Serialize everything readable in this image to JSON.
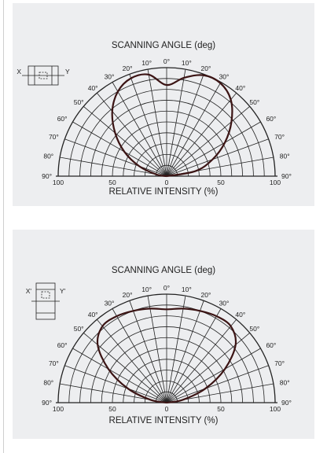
{
  "chart_data": [
    {
      "type": "polar",
      "title": "SCANNING ANGLE (deg)",
      "xlabel": "RELATIVE INTENSITY  (%)",
      "angle_ticks": [
        "10°",
        "0°",
        "10°",
        "20°",
        "30°",
        "40°",
        "50°",
        "60°",
        "70°",
        "80°",
        "90°"
      ],
      "angle_ticks_left": [
        "90°",
        "80°",
        "70°",
        "60°",
        "50°",
        "40°",
        "30°",
        "20°",
        "10°"
      ],
      "angle_ticks_right": [
        "0°",
        "10°",
        "20°",
        "30°",
        "40°",
        "50°",
        "60°",
        "70°",
        "80°",
        "90°"
      ],
      "intensity_ticks": [
        "100",
        "50",
        "0",
        "50",
        "100"
      ],
      "rlim": [
        0,
        100
      ],
      "inset": {
        "left_label": "X",
        "right_label": "Y"
      },
      "series": [
        {
          "angle_deg": [
            -90,
            -80,
            -70,
            -60,
            -50,
            -40,
            -30,
            -20,
            -10,
            0,
            10,
            20,
            30,
            40,
            50,
            60,
            70,
            80,
            90
          ],
          "relative_intensity": [
            0,
            10,
            27,
            45,
            62,
            78,
            90,
            96,
            95,
            84,
            92,
            99,
            99,
            92,
            78,
            62,
            45,
            27,
            0
          ]
        }
      ]
    },
    {
      "type": "polar",
      "title": "SCANNING ANGLE (deg)",
      "xlabel": "RELATIVE INTENSITY  (%)",
      "angle_ticks_left": [
        "90°",
        "80°",
        "70°",
        "60°",
        "50°",
        "40°",
        "30°",
        "20°",
        "10°"
      ],
      "angle_ticks_right": [
        "0°",
        "10°",
        "20°",
        "30°",
        "40°",
        "50°",
        "60°",
        "70°",
        "80°",
        "90°"
      ],
      "intensity_ticks": [
        "100",
        "50",
        "0",
        "50",
        "100"
      ],
      "rlim": [
        0,
        100
      ],
      "inset": {
        "left_label": "X'",
        "right_label": "Y'"
      },
      "series": [
        {
          "angle_deg": [
            -90,
            -80,
            -70,
            -60,
            -50,
            -40,
            -30,
            -20,
            -10,
            0,
            10,
            20,
            30,
            40,
            50,
            60,
            70,
            80,
            90
          ],
          "relative_intensity": [
            0,
            15,
            38,
            62,
            83,
            92,
            92,
            90,
            88,
            86,
            88,
            90,
            92,
            92,
            83,
            62,
            38,
            15,
            0
          ]
        }
      ]
    }
  ]
}
